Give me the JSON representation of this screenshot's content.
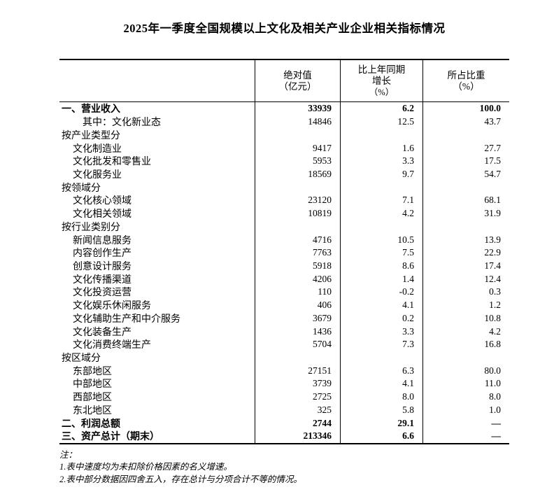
{
  "page": {
    "title": "2025年一季度全国规模以上文化及相关产业企业相关指标情况"
  },
  "table": {
    "headers": {
      "absolute": {
        "lines": [
          "绝对值",
          "（亿元）"
        ]
      },
      "growth": {
        "lines": [
          "比上年同期",
          "增长",
          "（%）"
        ]
      },
      "share": {
        "lines": [
          "所占比重",
          "（%）"
        ]
      }
    },
    "rows": [
      {
        "label": "一、营业收入",
        "indent": 0,
        "bold": true,
        "abs": "33939",
        "growth": "6.2",
        "share": "100.0"
      },
      {
        "label": "其中：文化新业态",
        "indent": 2,
        "bold": false,
        "abs": "14846",
        "growth": "12.5",
        "share": "43.7"
      },
      {
        "label": "按产业类型分",
        "indent": 0,
        "bold": false,
        "abs": "",
        "growth": "",
        "share": ""
      },
      {
        "label": "文化制造业",
        "indent": 1,
        "bold": false,
        "abs": "9417",
        "growth": "1.6",
        "share": "27.7"
      },
      {
        "label": "文化批发和零售业",
        "indent": 1,
        "bold": false,
        "abs": "5953",
        "growth": "3.3",
        "share": "17.5"
      },
      {
        "label": "文化服务业",
        "indent": 1,
        "bold": false,
        "abs": "18569",
        "growth": "9.7",
        "share": "54.7"
      },
      {
        "label": "按领域分",
        "indent": 0,
        "bold": false,
        "abs": "",
        "growth": "",
        "share": ""
      },
      {
        "label": "文化核心领域",
        "indent": 1,
        "bold": false,
        "abs": "23120",
        "growth": "7.1",
        "share": "68.1"
      },
      {
        "label": "文化相关领域",
        "indent": 1,
        "bold": false,
        "abs": "10819",
        "growth": "4.2",
        "share": "31.9"
      },
      {
        "label": "按行业类别分",
        "indent": 0,
        "bold": false,
        "abs": "",
        "growth": "",
        "share": ""
      },
      {
        "label": "新闻信息服务",
        "indent": 1,
        "bold": false,
        "abs": "4716",
        "growth": "10.5",
        "share": "13.9"
      },
      {
        "label": "内容创作生产",
        "indent": 1,
        "bold": false,
        "abs": "7763",
        "growth": "7.5",
        "share": "22.9"
      },
      {
        "label": "创意设计服务",
        "indent": 1,
        "bold": false,
        "abs": "5918",
        "growth": "8.6",
        "share": "17.4"
      },
      {
        "label": "文化传播渠道",
        "indent": 1,
        "bold": false,
        "abs": "4206",
        "growth": "1.4",
        "share": "12.4"
      },
      {
        "label": "文化投资运营",
        "indent": 1,
        "bold": false,
        "abs": "110",
        "growth": "-0.2",
        "share": "0.3"
      },
      {
        "label": "文化娱乐休闲服务",
        "indent": 1,
        "bold": false,
        "abs": "406",
        "growth": "4.1",
        "share": "1.2"
      },
      {
        "label": "文化辅助生产和中介服务",
        "indent": 1,
        "bold": false,
        "abs": "3679",
        "growth": "0.2",
        "share": "10.8"
      },
      {
        "label": "文化装备生产",
        "indent": 1,
        "bold": false,
        "abs": "1436",
        "growth": "3.3",
        "share": "4.2"
      },
      {
        "label": "文化消费终端生产",
        "indent": 1,
        "bold": false,
        "abs": "5704",
        "growth": "7.3",
        "share": "16.8"
      },
      {
        "label": "按区域分",
        "indent": 0,
        "bold": false,
        "abs": "",
        "growth": "",
        "share": ""
      },
      {
        "label": "东部地区",
        "indent": 1,
        "bold": false,
        "abs": "27151",
        "growth": "6.3",
        "share": "80.0"
      },
      {
        "label": "中部地区",
        "indent": 1,
        "bold": false,
        "abs": "3739",
        "growth": "4.1",
        "share": "11.0"
      },
      {
        "label": "西部地区",
        "indent": 1,
        "bold": false,
        "abs": "2725",
        "growth": "8.0",
        "share": "8.0"
      },
      {
        "label": "东北地区",
        "indent": 1,
        "bold": false,
        "abs": "325",
        "growth": "5.8",
        "share": "1.0"
      },
      {
        "label": "二、利润总额",
        "indent": 0,
        "bold": true,
        "abs": "2744",
        "growth": "29.1",
        "share": "—"
      },
      {
        "label": "三、资产总计（期末）",
        "indent": 0,
        "bold": true,
        "abs": "213346",
        "growth": "6.6",
        "share": "—"
      }
    ]
  },
  "notes": {
    "heading": "注：",
    "items": [
      "1.表中速度均为未扣除价格因素的名义增速。",
      "2.表中部分数据因四舍五入，存在总计与分项合计不等的情况。"
    ]
  }
}
